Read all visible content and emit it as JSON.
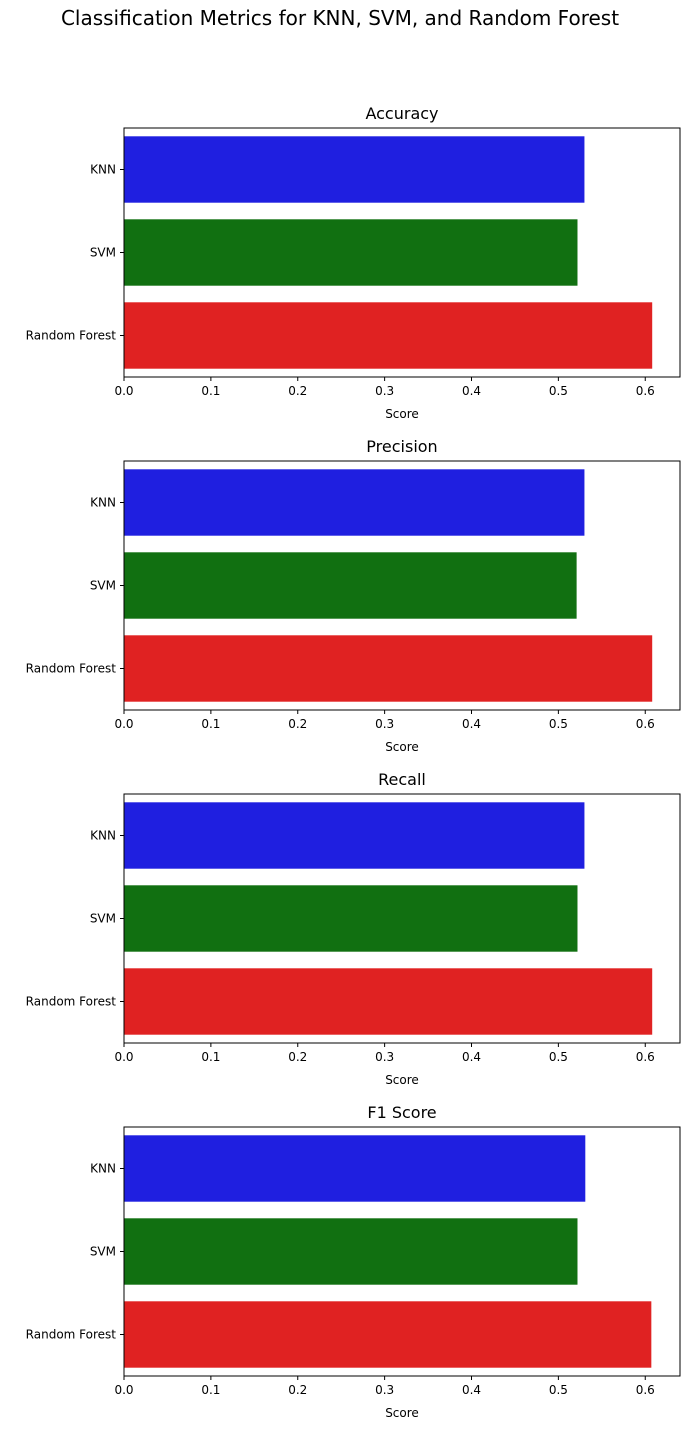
{
  "figure": {
    "title": "Classification Metrics for KNN, SVM, and Random Forest"
  },
  "chart_data": [
    {
      "type": "bar",
      "orientation": "horizontal",
      "title": "Accuracy",
      "categories": [
        "KNN",
        "SVM",
        "Random Forest"
      ],
      "values": [
        0.53,
        0.522,
        0.608
      ],
      "colors": [
        "#1f1fe0",
        "#117011",
        "#e02222"
      ],
      "xlabel": "Score",
      "ylabel": "",
      "xlim": [
        0,
        0.64
      ],
      "xticks": [
        0.0,
        0.1,
        0.2,
        0.3,
        0.4,
        0.5,
        0.6
      ],
      "xtick_labels": [
        "0.0",
        "0.1",
        "0.2",
        "0.3",
        "0.4",
        "0.5",
        "0.6"
      ],
      "grid": false
    },
    {
      "type": "bar",
      "orientation": "horizontal",
      "title": "Precision",
      "categories": [
        "KNN",
        "SVM",
        "Random Forest"
      ],
      "values": [
        0.53,
        0.521,
        0.608
      ],
      "colors": [
        "#1f1fe0",
        "#117011",
        "#e02222"
      ],
      "xlabel": "Score",
      "ylabel": "",
      "xlim": [
        0,
        0.64
      ],
      "xticks": [
        0.0,
        0.1,
        0.2,
        0.3,
        0.4,
        0.5,
        0.6
      ],
      "xtick_labels": [
        "0.0",
        "0.1",
        "0.2",
        "0.3",
        "0.4",
        "0.5",
        "0.6"
      ],
      "grid": false
    },
    {
      "type": "bar",
      "orientation": "horizontal",
      "title": "Recall",
      "categories": [
        "KNN",
        "SVM",
        "Random Forest"
      ],
      "values": [
        0.53,
        0.522,
        0.608
      ],
      "colors": [
        "#1f1fe0",
        "#117011",
        "#e02222"
      ],
      "xlabel": "Score",
      "ylabel": "",
      "xlim": [
        0,
        0.64
      ],
      "xticks": [
        0.0,
        0.1,
        0.2,
        0.3,
        0.4,
        0.5,
        0.6
      ],
      "xtick_labels": [
        "0.0",
        "0.1",
        "0.2",
        "0.3",
        "0.4",
        "0.5",
        "0.6"
      ],
      "grid": false
    },
    {
      "type": "bar",
      "orientation": "horizontal",
      "title": "F1 Score",
      "categories": [
        "KNN",
        "SVM",
        "Random Forest"
      ],
      "values": [
        0.531,
        0.522,
        0.607
      ],
      "colors": [
        "#1f1fe0",
        "#117011",
        "#e02222"
      ],
      "xlabel": "Score",
      "ylabel": "",
      "xlim": [
        0,
        0.64
      ],
      "xticks": [
        0.0,
        0.1,
        0.2,
        0.3,
        0.4,
        0.5,
        0.6
      ],
      "xtick_labels": [
        "0.0",
        "0.1",
        "0.2",
        "0.3",
        "0.4",
        "0.5",
        "0.6"
      ],
      "grid": false
    }
  ]
}
